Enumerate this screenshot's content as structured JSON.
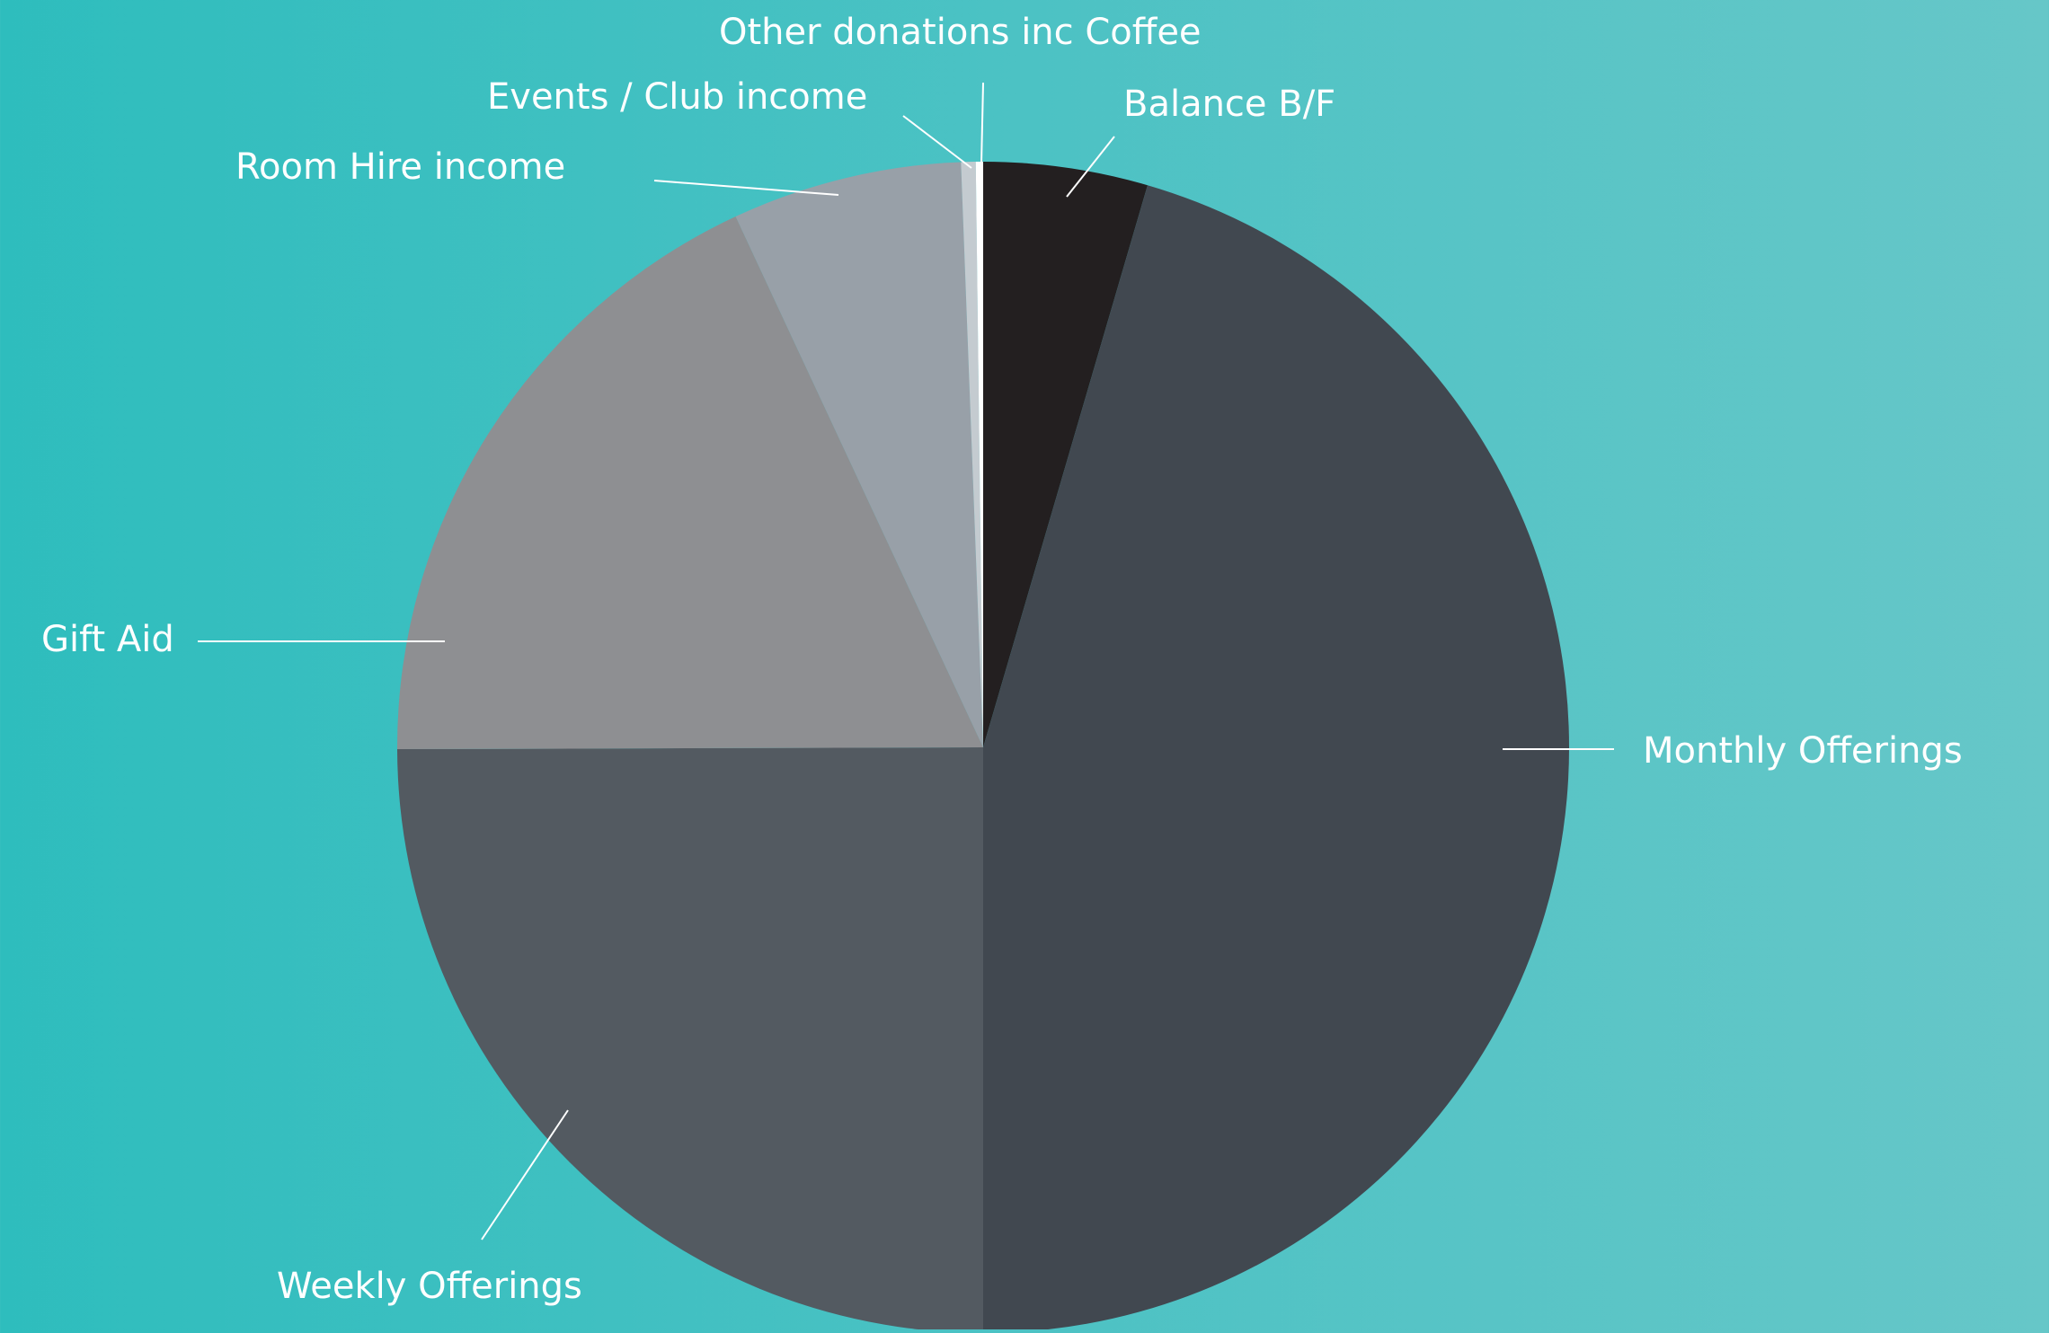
{
  "chart_data": {
    "type": "pie",
    "title": "",
    "start_angle_deg": 0,
    "direction": "clockwise",
    "slices": [
      {
        "label": "Balance B/F",
        "value": 4.5,
        "color": "#231f20"
      },
      {
        "label": "Monthly Offerings",
        "value": 45.2,
        "color": "#414850"
      },
      {
        "label": "Weekly Offerings",
        "value": 24.8,
        "color": "#535a61"
      },
      {
        "label": "Gift Aid",
        "value": 18.0,
        "color": "#8e8f92"
      },
      {
        "label": "Room Hire income",
        "value": 6.3,
        "color": "#98a0a8"
      },
      {
        "label": "Events / Club income",
        "value": 0.4,
        "color": "#c4cbd0"
      },
      {
        "label": "Other donations inc Coffee",
        "value": 0.2,
        "color": "#ffffff"
      }
    ],
    "legend": "none",
    "label_color": "#ffffff"
  }
}
